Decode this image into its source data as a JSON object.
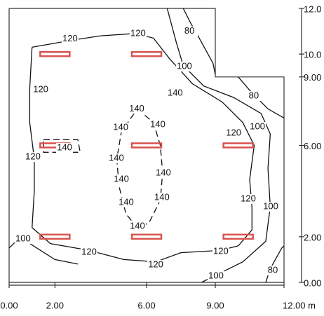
{
  "chart_data": {
    "type": "contour",
    "xlim": [
      0,
      12
    ],
    "ylim": [
      0,
      12
    ],
    "xticks": [
      {
        "value": 0,
        "label": "0.00"
      },
      {
        "value": 2,
        "label": "2.00"
      },
      {
        "value": 6,
        "label": "6.00"
      },
      {
        "value": 9,
        "label": "9.00"
      },
      {
        "value": 12,
        "label": "12.00 m"
      }
    ],
    "yticks": [
      {
        "value": 0,
        "label": "0.00"
      },
      {
        "value": 2,
        "label": "2.00"
      },
      {
        "value": 6,
        "label": "6.00"
      },
      {
        "value": 9,
        "label": "9.00"
      },
      {
        "value": 10,
        "label": "10.0"
      },
      {
        "value": 12,
        "label": "12.0"
      }
    ],
    "room": {
      "x": [
        0,
        9,
        9,
        12,
        12,
        0,
        0
      ],
      "y": [
        12,
        12,
        9,
        9,
        0,
        0,
        12
      ]
    },
    "lamp_color": "#d9534f",
    "lamps": {
      "x": [
        2,
        6,
        2,
        6,
        10,
        2,
        6,
        10
      ],
      "y": [
        10,
        10,
        6,
        6,
        6,
        2,
        2,
        2
      ]
    },
    "contours": [
      {
        "level": 120,
        "x": [
          1.0,
          2.7,
          4.0,
          5.5,
          6.3,
          7.0,
          8.0,
          9.3,
          10.2,
          10.7,
          10.5,
          10.6,
          10.6,
          10.0,
          9.2,
          7.5,
          6.4,
          5.0,
          3.5,
          1.8,
          1.0,
          1.1,
          1.1,
          0.9,
          0.9,
          1.0
        ],
        "y": [
          10.3,
          10.6,
          10.8,
          10.9,
          10.7,
          9.8,
          8.7,
          7.9,
          7.0,
          6.0,
          4.5,
          3.3,
          2.3,
          1.6,
          1.4,
          1.3,
          0.9,
          1.0,
          1.4,
          1.7,
          2.4,
          4.0,
          5.4,
          7.0,
          8.5,
          10.3
        ]
      },
      {
        "level": 140,
        "x": [
          5.6,
          6.3,
          6.6,
          6.7,
          6.6,
          6.1,
          5.6,
          5.1,
          4.8,
          4.7,
          4.9,
          5.6
        ],
        "y": [
          7.6,
          7.0,
          6.0,
          4.8,
          3.6,
          2.6,
          2.4,
          3.0,
          4.2,
          5.4,
          6.6,
          7.6
        ]
      },
      {
        "level": 140,
        "x": [
          1.5,
          3.0,
          3.1,
          1.5,
          1.5
        ],
        "y": [
          6.25,
          6.25,
          5.7,
          5.7,
          6.25
        ]
      },
      {
        "level": 100,
        "x": [
          6.9,
          7.3,
          7.6,
          8.5,
          9.8,
          11.0,
          11.4,
          11.3,
          11.4,
          11.2,
          10.2,
          9.0,
          8.4
        ],
        "y": [
          12,
          10.5,
          9.5,
          8.6,
          8.1,
          7.4,
          6.5,
          5.0,
          3.3,
          1.8,
          0.9,
          0.3,
          0
        ]
      },
      {
        "level": 100,
        "x": [
          0,
          0.4,
          0.9,
          2.0,
          3.0
        ],
        "y": [
          1.5,
          1.9,
          1.7,
          1.0,
          0.8
        ]
      },
      {
        "level": 80,
        "x": [
          7.6,
          7.9,
          8.3,
          8.9,
          9.0
        ],
        "y": [
          12,
          11.4,
          10.7,
          9.6,
          9.1
        ]
      },
      {
        "level": 80,
        "x": [
          10.0,
          10.6,
          11.3,
          12
        ],
        "y": [
          9.0,
          8.3,
          7.6,
          7.2
        ]
      },
      {
        "level": 80,
        "x": [
          11.2,
          11.4,
          11.9,
          12
        ],
        "y": [
          0,
          0.6,
          1.5,
          1.6
        ]
      }
    ],
    "contour_labels": [
      {
        "value": 120,
        "x": 2.66,
        "y": 10.67
      },
      {
        "value": 120,
        "x": 5.63,
        "y": 10.89
      },
      {
        "value": 80,
        "x": 7.87,
        "y": 11.0
      },
      {
        "value": 100,
        "x": 7.65,
        "y": 9.45
      },
      {
        "value": 120,
        "x": 1.38,
        "y": 8.44
      },
      {
        "value": 140,
        "x": 7.25,
        "y": 8.28
      },
      {
        "value": 80,
        "x": 10.68,
        "y": 8.16
      },
      {
        "value": 140,
        "x": 5.57,
        "y": 7.6
      },
      {
        "value": 140,
        "x": 4.87,
        "y": 6.78
      },
      {
        "value": 140,
        "x": 6.49,
        "y": 6.9
      },
      {
        "value": 120,
        "x": 9.8,
        "y": 6.53
      },
      {
        "value": 100,
        "x": 10.84,
        "y": 6.81
      },
      {
        "value": 140,
        "x": 2.42,
        "y": 5.89
      },
      {
        "value": 120,
        "x": 1.04,
        "y": 5.49
      },
      {
        "value": 140,
        "x": 4.68,
        "y": 5.43
      },
      {
        "value": 140,
        "x": 6.73,
        "y": 4.79
      },
      {
        "value": 140,
        "x": 4.9,
        "y": 4.51
      },
      {
        "value": 140,
        "x": 6.67,
        "y": 3.71
      },
      {
        "value": 140,
        "x": 5.11,
        "y": 3.5
      },
      {
        "value": 120,
        "x": 10.44,
        "y": 3.65
      },
      {
        "value": 100,
        "x": 11.42,
        "y": 3.31
      },
      {
        "value": 140,
        "x": 5.6,
        "y": 2.45
      },
      {
        "value": 100,
        "x": 0.61,
        "y": 1.9
      },
      {
        "value": 120,
        "x": 3.49,
        "y": 1.32
      },
      {
        "value": 120,
        "x": 9.24,
        "y": 1.35
      },
      {
        "value": 120,
        "x": 6.4,
        "y": 0.77
      },
      {
        "value": 100,
        "x": 9.03,
        "y": 0.28
      },
      {
        "value": 80,
        "x": 11.51,
        "y": 0.52
      }
    ]
  }
}
